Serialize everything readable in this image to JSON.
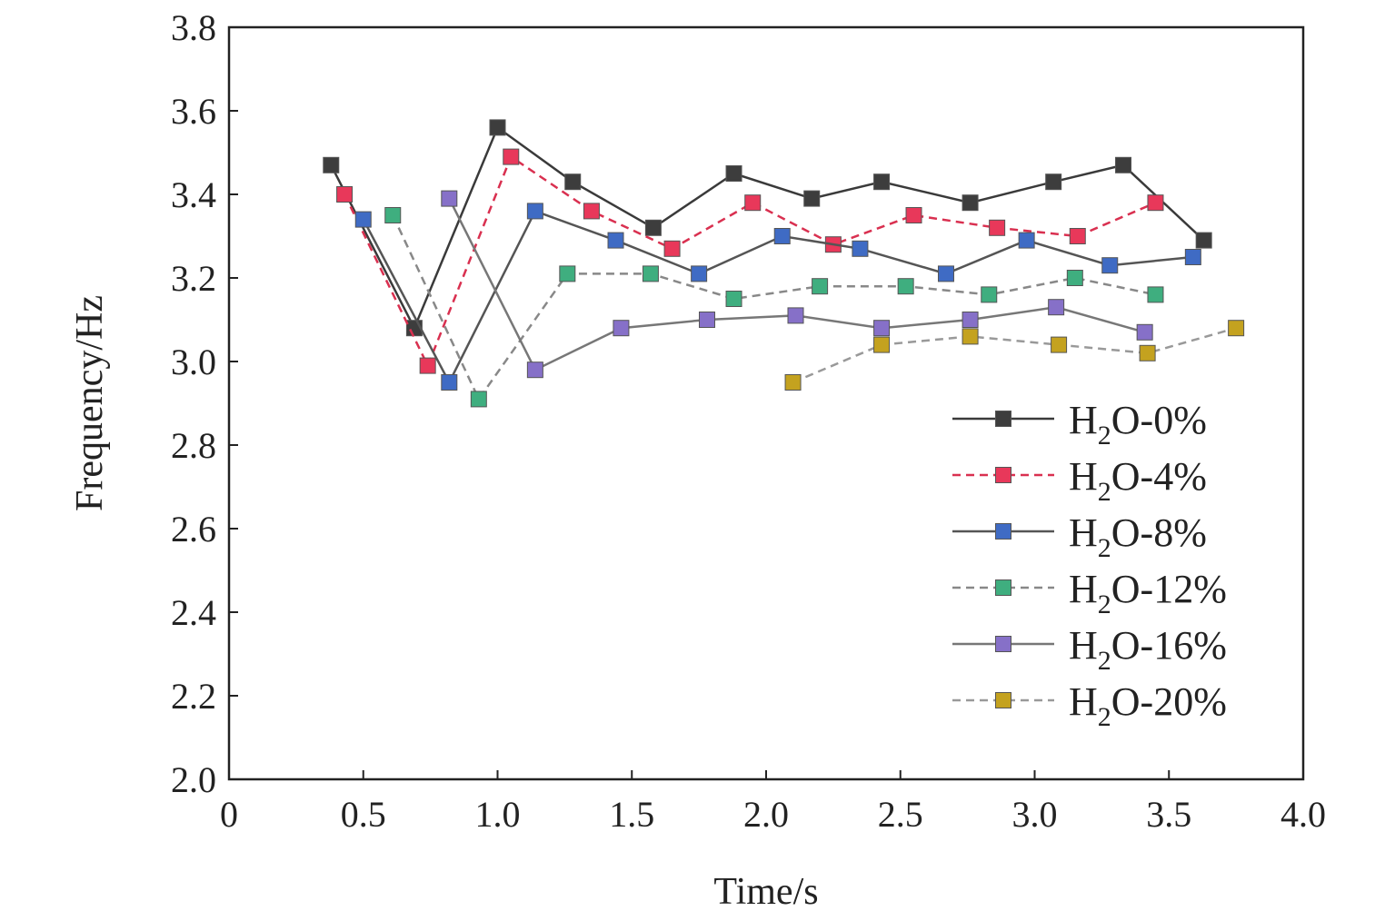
{
  "chart_data": {
    "type": "line",
    "xlabel": "Time/s",
    "ylabel": "Frequency/Hz",
    "xlim": [
      0,
      4.0
    ],
    "ylim": [
      2.0,
      3.8
    ],
    "x_ticks": [
      "0",
      "0.5",
      "1.0",
      "1.5",
      "2.0",
      "2.5",
      "3.0",
      "3.5",
      "4.0"
    ],
    "y_ticks": [
      "2.0",
      "2.2",
      "2.4",
      "2.6",
      "2.8",
      "3.0",
      "3.2",
      "3.4",
      "3.6",
      "3.8"
    ],
    "grid": false,
    "legend_position": "right",
    "series": [
      {
        "name": "H2O-0%",
        "label_main": "H",
        "label_sub": "2",
        "label_rest": "O-0%",
        "color": "#3d3d3d",
        "line_color": "#3a3a3a",
        "dashed": false,
        "x": [
          0.38,
          0.69,
          1.0,
          1.28,
          1.58,
          1.88,
          2.17,
          2.43,
          2.76,
          3.07,
          3.33,
          3.63
        ],
        "y": [
          3.47,
          3.08,
          3.56,
          3.43,
          3.32,
          3.45,
          3.39,
          3.43,
          3.38,
          3.43,
          3.47,
          3.29
        ]
      },
      {
        "name": "H2O-4%",
        "label_main": "H",
        "label_sub": "2",
        "label_rest": "O-4%",
        "color": "#e8385a",
        "line_color": "#d93050",
        "dashed": true,
        "x": [
          0.43,
          0.74,
          1.05,
          1.35,
          1.65,
          1.95,
          2.25,
          2.55,
          2.86,
          3.16,
          3.45
        ],
        "y": [
          3.4,
          2.99,
          3.49,
          3.36,
          3.27,
          3.38,
          3.28,
          3.35,
          3.32,
          3.3,
          3.38
        ]
      },
      {
        "name": "H2O-8%",
        "label_main": "H",
        "label_sub": "2",
        "label_rest": "O-8%",
        "color": "#3f6bc4",
        "line_color": "#555555",
        "dashed": false,
        "x": [
          0.5,
          0.82,
          1.14,
          1.44,
          1.75,
          2.06,
          2.35,
          2.67,
          2.97,
          3.28,
          3.59
        ],
        "y": [
          3.34,
          2.95,
          3.36,
          3.29,
          3.21,
          3.3,
          3.27,
          3.21,
          3.29,
          3.23,
          3.25
        ]
      },
      {
        "name": "H2O-12%",
        "label_main": "H",
        "label_sub": "2",
        "label_rest": "O-12%",
        "color": "#3fae7f",
        "line_color": "#888888",
        "dashed": true,
        "x": [
          0.61,
          0.93,
          1.26,
          1.57,
          1.88,
          2.2,
          2.52,
          2.83,
          3.15,
          3.45
        ],
        "y": [
          3.35,
          2.91,
          3.21,
          3.21,
          3.15,
          3.18,
          3.18,
          3.16,
          3.2,
          3.16
        ]
      },
      {
        "name": "H2O-16%",
        "label_main": "H",
        "label_sub": "2",
        "label_rest": "O-16%",
        "color": "#8670c8",
        "line_color": "#777777",
        "dashed": false,
        "x": [
          0.82,
          1.14,
          1.46,
          1.78,
          2.11,
          2.43,
          2.76,
          3.08,
          3.41
        ],
        "y": [
          3.39,
          2.98,
          3.08,
          3.1,
          3.11,
          3.08,
          3.1,
          3.13,
          3.07
        ]
      },
      {
        "name": "H2O-20%",
        "label_main": "H",
        "label_sub": "2",
        "label_rest": "O-20%",
        "color": "#c4a21f",
        "line_color": "#999999",
        "dashed": true,
        "x": [
          2.1,
          2.43,
          2.76,
          3.09,
          3.42,
          3.75
        ],
        "y": [
          2.95,
          3.04,
          3.06,
          3.04,
          3.02,
          3.08
        ]
      }
    ]
  }
}
